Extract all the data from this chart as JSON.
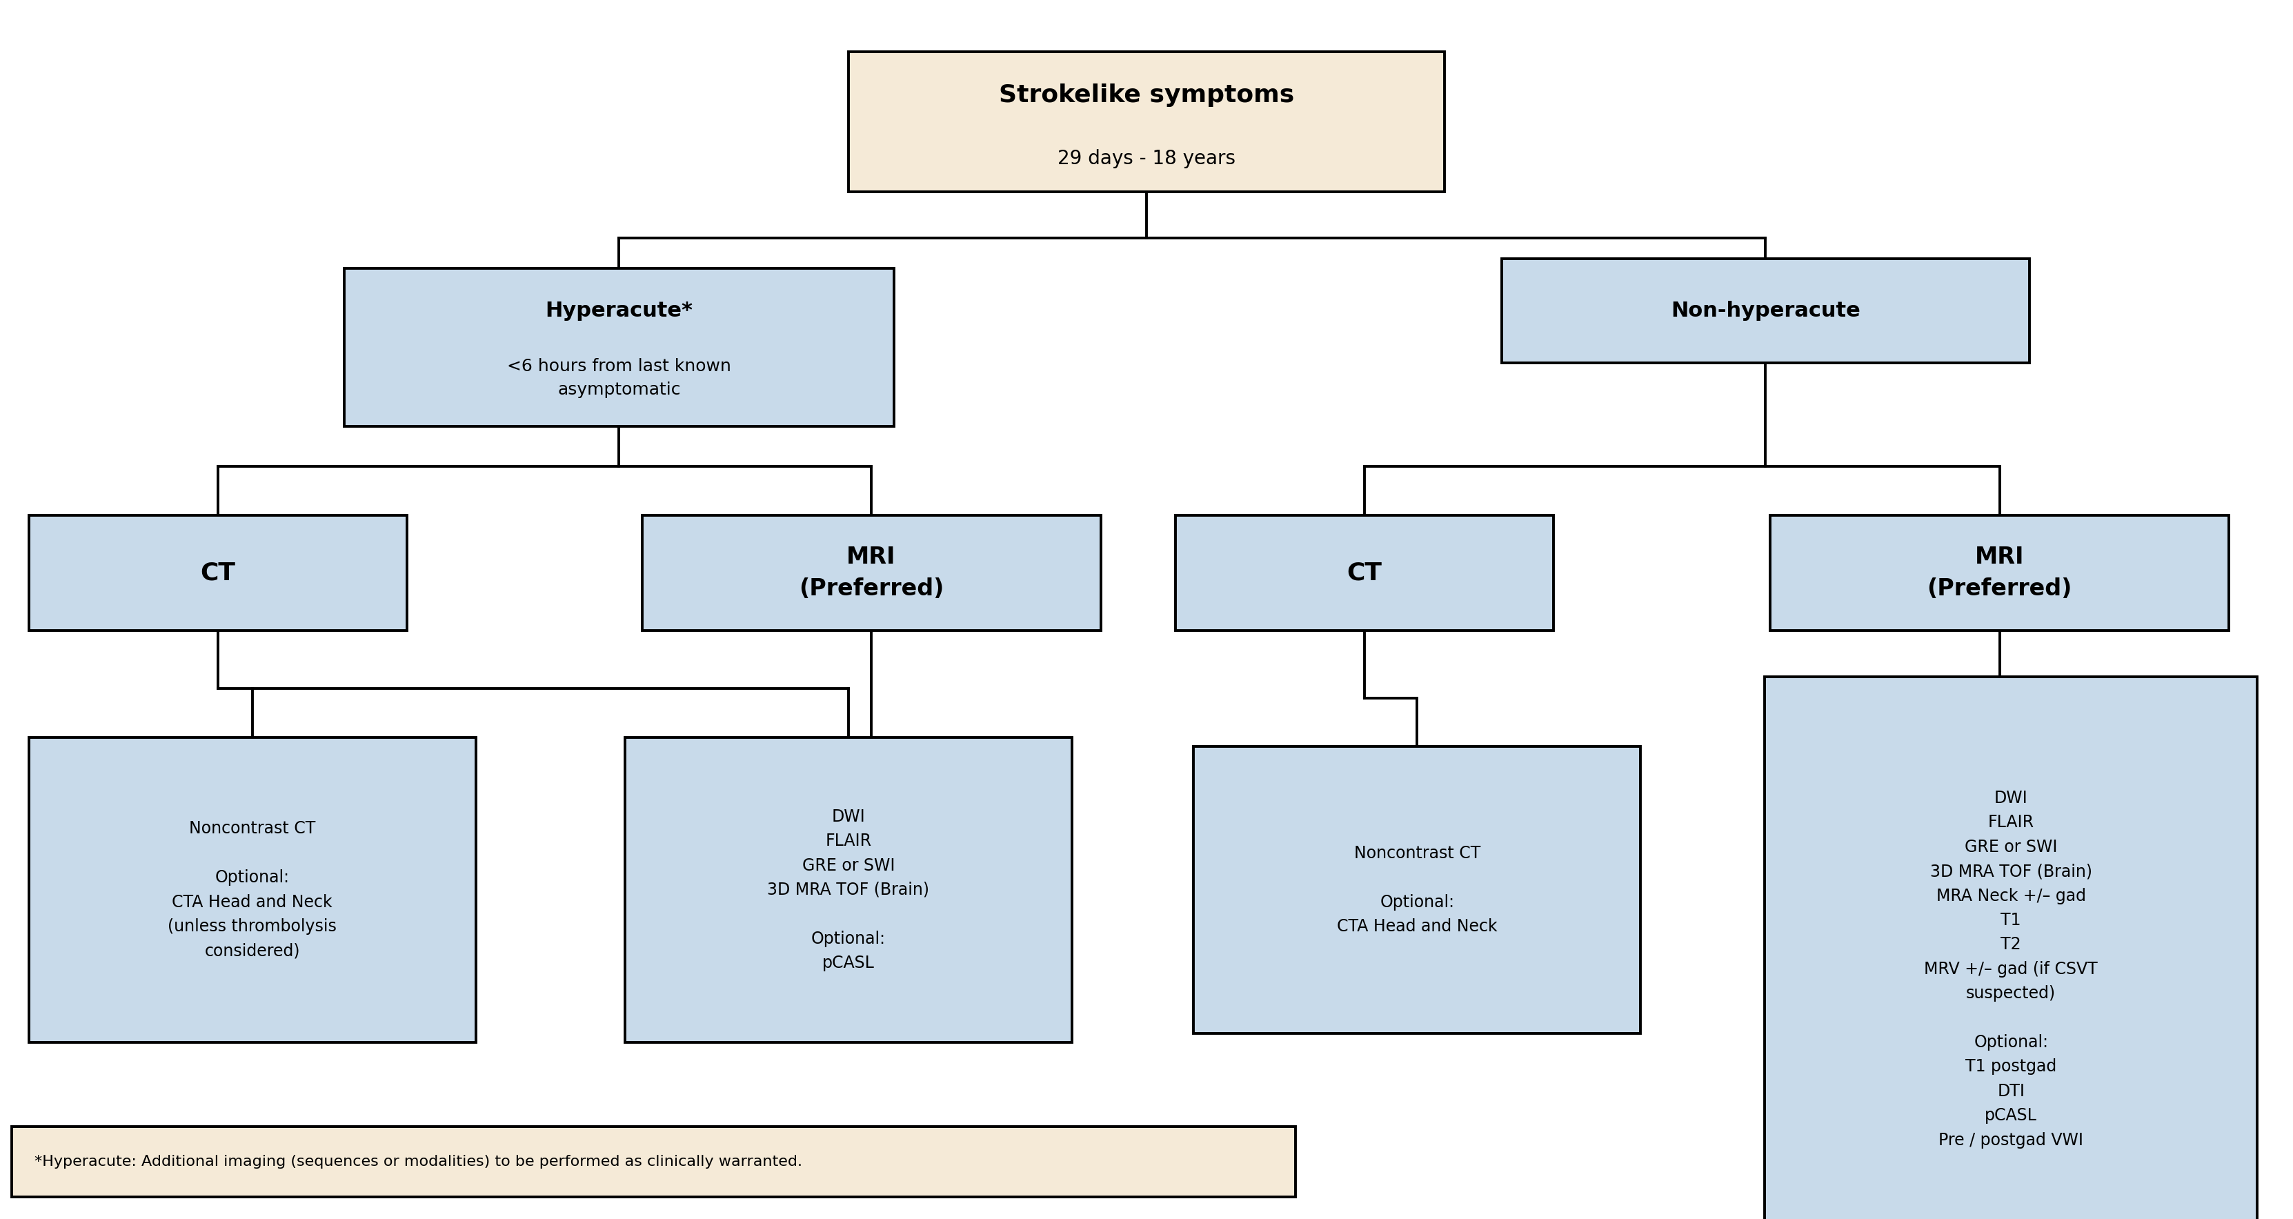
{
  "tan_bg": "#f5ead7",
  "blue_bg": "#c8daea",
  "white_bg": "#ffffff",
  "line_color": "#000000",
  "footnote": "*Hyperacute: Additional imaging (sequences or modalities) to be performed as clinically warranted.",
  "root_title": "Strokelike symptoms",
  "root_sub": "29 days - 18 years",
  "hyperacute_bold": "Hyperacute*",
  "hyperacute_sub": "<6 hours from last known\nasymptomatic",
  "nonhyperacute_text": "Non-hyperacute",
  "ct_text": "CT",
  "mri_text": "MRI\n(Preferred)",
  "ct_l_detail": "Noncontrast CT\n\nOptional:\nCTA Head and Neck\n(unless thrombolysis\nconsidered)",
  "mri_l_detail": "DWI\nFLAIR\nGRE or SWI\n3D MRA TOF (Brain)\n\nOptional:\npCASL",
  "ct_r_detail": "Noncontrast CT\n\nOptional:\nCTA Head and Neck",
  "mri_r_detail": "DWI\nFLAIR\nGRE or SWI\n3D MRA TOF (Brain)\nMRA Neck +/– gad\nT1\nT2\nMRV +/– gad (if CSVT\nsuspected)\n\nOptional:\nT1 postgad\nDTI\npCASL\nPre / postgad VWI"
}
